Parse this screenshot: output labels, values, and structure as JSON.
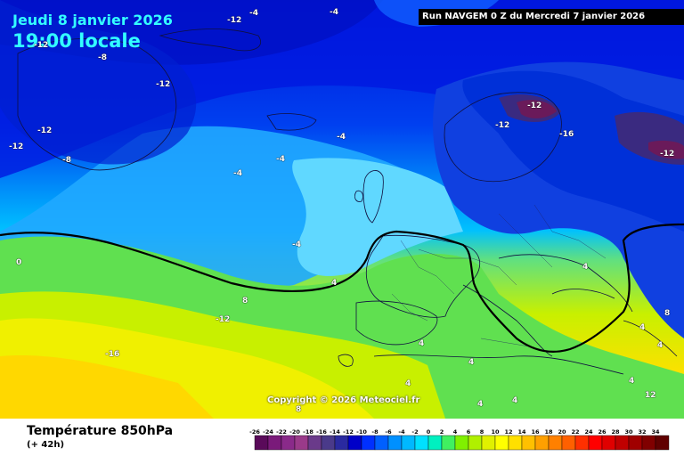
{
  "header": {
    "date": "Jeudi 8 janvier 2026",
    "time": "19:00 locale",
    "run": "Run NAVGEM 0 Z du Mercredi 7 janvier 2026"
  },
  "copyright": "Copyright © 2026 Meteociel.fr",
  "variable": {
    "name": "Température 850hPa",
    "lead": "(+ 42h)"
  },
  "isolines": [
    {
      "text": "-12",
      "name": "isoline-label-greenland-north",
      "dark": false
    },
    {
      "text": "-4",
      "name": "isoline-label-north-1",
      "dark": false
    },
    {
      "text": "-4",
      "name": "isoline-label-north-2",
      "dark": false
    },
    {
      "text": "-8",
      "name": "isoline-label-north-3",
      "dark": false
    },
    {
      "text": "-12",
      "name": "isoline-label-greenland",
      "dark": false
    },
    {
      "text": "-12",
      "name": "isoline-label-west-1",
      "dark": false
    },
    {
      "text": "-12",
      "name": "isoline-label-west-2",
      "dark": false
    },
    {
      "text": "-12",
      "name": "isoline-label-west-3",
      "dark": false
    },
    {
      "text": "-8",
      "name": "isoline-label-iceland",
      "dark": false
    },
    {
      "text": "-4",
      "name": "isoline-label-atlantic-1",
      "dark": false
    },
    {
      "text": "-4",
      "name": "isoline-label-atlantic-2",
      "dark": false
    },
    {
      "text": "-4",
      "name": "isoline-label-atlantic-3",
      "dark": false
    },
    {
      "text": "-4",
      "name": "isoline-label-far-west",
      "dark": false
    },
    {
      "text": "0",
      "name": "isoline-label-zero",
      "dark": false
    },
    {
      "text": "4",
      "name": "isoline-label-ocean-4",
      "dark": false
    },
    {
      "text": "8",
      "name": "isoline-label-ocean-8",
      "dark": false
    },
    {
      "text": "-12",
      "name": "isoline-label-azores",
      "dark": false
    },
    {
      "text": "-16",
      "name": "isoline-label-scandinavia",
      "dark": false
    },
    {
      "text": "-12",
      "name": "isoline-label-norway",
      "dark": false
    },
    {
      "text": "-12",
      "name": "isoline-label-finland",
      "dark": false
    },
    {
      "text": "-16",
      "name": "isoline-label-russia",
      "dark": false
    },
    {
      "text": "-12",
      "name": "isoline-label-poland",
      "dark": false
    },
    {
      "text": "4",
      "name": "isoline-label-iberia",
      "dark": false
    },
    {
      "text": "4",
      "name": "isoline-label-italy",
      "dark": false
    },
    {
      "text": "4",
      "name": "isoline-label-africa-1",
      "dark": false
    },
    {
      "text": "4",
      "name": "isoline-label-africa-2",
      "dark": false
    },
    {
      "text": "4",
      "name": "isoline-label-africa-3",
      "dark": false
    },
    {
      "text": "4",
      "name": "isoline-label-black-sea",
      "dark": false
    },
    {
      "text": "4",
      "name": "isoline-label-turkey-1",
      "dark": false
    },
    {
      "text": "4",
      "name": "isoline-label-turkey-2",
      "dark": false
    },
    {
      "text": "8",
      "name": "isoline-label-east-8",
      "dark": false
    },
    {
      "text": "4",
      "name": "isoline-label-east-4",
      "dark": false
    },
    {
      "text": "12",
      "name": "isoline-label-east-12",
      "dark": false
    },
    {
      "text": "8",
      "name": "isoline-label-sahara",
      "dark": false
    }
  ],
  "scale": {
    "ticks": [
      "-26",
      "-24",
      "-22",
      "-20",
      "-18",
      "-16",
      "-14",
      "-12",
      "-10",
      "-8",
      "-6",
      "-4",
      "-2",
      "0",
      "2",
      "4",
      "6",
      "8",
      "10",
      "12",
      "14",
      "16",
      "18",
      "20",
      "22",
      "24",
      "26",
      "28",
      "30",
      "32",
      "34"
    ],
    "colors": [
      "#5a0a5a",
      "#7a1a7a",
      "#8a2a8a",
      "#9a3a8a",
      "#6a3a8a",
      "#4a3a8a",
      "#2a2aa0",
      "#0000c8",
      "#0030ff",
      "#0060ff",
      "#0090ff",
      "#00b8ff",
      "#00e0ff",
      "#00f0c0",
      "#40f060",
      "#80f000",
      "#b0f000",
      "#e0f000",
      "#ffff00",
      "#ffe000",
      "#ffc000",
      "#ffa000",
      "#ff8000",
      "#ff6000",
      "#ff3000",
      "#ff0000",
      "#e00000",
      "#c00000",
      "#a00000",
      "#800000",
      "#600000"
    ]
  }
}
